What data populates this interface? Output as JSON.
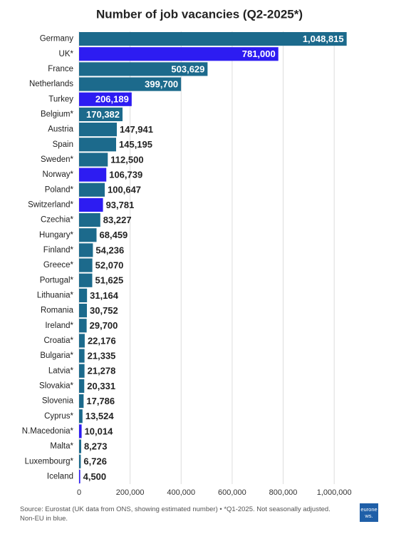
{
  "chart_data": {
    "type": "hbar",
    "title": "Number of job vacancies (Q2-2025*)",
    "categories": [
      "Germany",
      "UK*",
      "France",
      "Netherlands",
      "Turkey",
      "Belgium*",
      "Austria",
      "Spain",
      "Sweden*",
      "Norway*",
      "Poland*",
      "Switzerland*",
      "Czechia*",
      "Hungary*",
      "Finland*",
      "Greece*",
      "Portugal*",
      "Lithuania*",
      "Romania",
      "Ireland*",
      "Croatia*",
      "Bulgaria*",
      "Latvia*",
      "Slovakia*",
      "Slovenia",
      "Cyprus*",
      "N.Macedonia*",
      "Malta*",
      "Luxembourg*",
      "Iceland"
    ],
    "values": [
      1048815,
      781000,
      503629,
      399700,
      206189,
      170382,
      147941,
      145195,
      112500,
      106739,
      100647,
      93781,
      83227,
      68459,
      54236,
      52070,
      51625,
      31164,
      30752,
      29700,
      22176,
      21335,
      21278,
      20331,
      17786,
      13524,
      10014,
      8273,
      6726,
      4500
    ],
    "value_labels": [
      "1,048,815",
      "781,000",
      "503,629",
      "399,700",
      "206,189",
      "170,382",
      "147,941",
      "145,195",
      "112,500",
      "106,739",
      "100,647",
      "93,781",
      "83,227",
      "68,459",
      "54,236",
      "52,070",
      "51,625",
      "31,164",
      "30,752",
      "29,700",
      "22,176",
      "21,335",
      "21,278",
      "20,331",
      "17,786",
      "13,524",
      "10,014",
      "8,273",
      "6,726",
      "4,500"
    ],
    "colors": [
      "#1c6a8c",
      "#2d1cf2",
      "#1c6a8c",
      "#1c6a8c",
      "#2d1cf2",
      "#1c6a8c",
      "#1c6a8c",
      "#1c6a8c",
      "#1c6a8c",
      "#2d1cf2",
      "#1c6a8c",
      "#2d1cf2",
      "#1c6a8c",
      "#1c6a8c",
      "#1c6a8c",
      "#1c6a8c",
      "#1c6a8c",
      "#1c6a8c",
      "#1c6a8c",
      "#1c6a8c",
      "#1c6a8c",
      "#1c6a8c",
      "#1c6a8c",
      "#1c6a8c",
      "#1c6a8c",
      "#1c6a8c",
      "#2d1cf2",
      "#1c6a8c",
      "#1c6a8c",
      "#2d1cf2"
    ],
    "xlim": [
      0,
      1100000
    ],
    "xticks": [
      0,
      {
        "value": 200000,
        "label": "200,000"
      },
      {
        "value": 400000,
        "label": "400,000"
      },
      {
        "value": 600000,
        "label": "600,000"
      },
      {
        "value": 800000,
        "label": "800,000"
      },
      {
        "value": 1000000,
        "label": "1,000,000"
      }
    ],
    "grid": true,
    "source": "Source: Eurostat (UK data from ONS, showing estimated number) • *Q1-2025. Not seasonally adjusted. Non-EU in blue.",
    "logo": "euronews."
  }
}
